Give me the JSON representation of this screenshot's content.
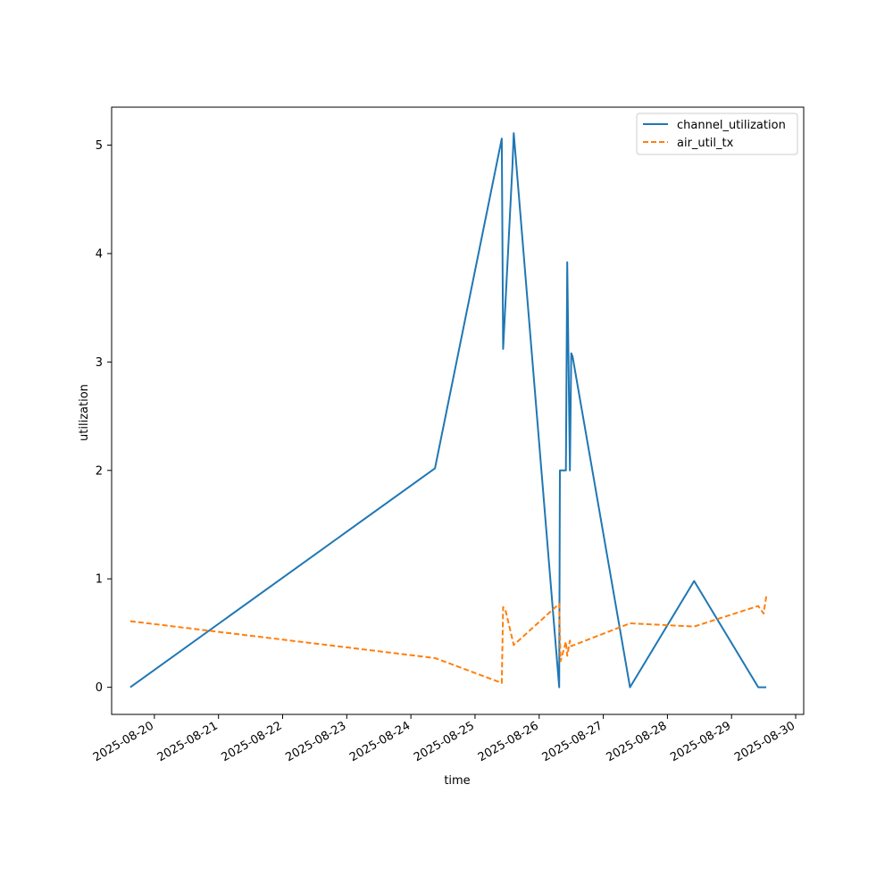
{
  "chart_data": {
    "type": "line",
    "title": "",
    "xlabel": "time",
    "ylabel": "utilization",
    "x_ticks": [
      "2025-08-20",
      "2025-08-21",
      "2025-08-22",
      "2025-08-23",
      "2025-08-24",
      "2025-08-25",
      "2025-08-26",
      "2025-08-27",
      "2025-08-28",
      "2025-08-29",
      "2025-08-30"
    ],
    "y_ticks": [
      "0",
      "1",
      "2",
      "3",
      "4",
      "5"
    ],
    "xlim": [
      "2025-08-19T08:00",
      "2025-08-30T03:00"
    ],
    "ylim": [
      -0.25,
      5.35
    ],
    "grid": false,
    "legend_position": "top-right",
    "series": [
      {
        "name": "channel_utilization",
        "color": "#1f77b4",
        "style": "solid",
        "points": [
          [
            "2025-08-19T15:00",
            0.0
          ],
          [
            "2025-08-24T09:00",
            2.02
          ],
          [
            "2025-08-25T10:00",
            5.06
          ],
          [
            "2025-08-25T10:30",
            3.12
          ],
          [
            "2025-08-25T14:00",
            4.8
          ],
          [
            "2025-08-25T14:30",
            5.11
          ],
          [
            "2025-08-26T07:30",
            0.0
          ],
          [
            "2025-08-26T07:45",
            2.0
          ],
          [
            "2025-08-26T10:00",
            2.0
          ],
          [
            "2025-08-26T10:30",
            3.92
          ],
          [
            "2025-08-26T11:30",
            2.0
          ],
          [
            "2025-08-26T12:00",
            3.08
          ],
          [
            "2025-08-26T12:30",
            3.05
          ],
          [
            "2025-08-27T10:00",
            0.0
          ],
          [
            "2025-08-28T10:00",
            0.98
          ],
          [
            "2025-08-29T10:00",
            0.0
          ],
          [
            "2025-08-29T13:00",
            0.0
          ]
        ]
      },
      {
        "name": "air_util_tx",
        "color": "#ff7f0e",
        "style": "dashed",
        "points": [
          [
            "2025-08-19T15:00",
            0.61
          ],
          [
            "2025-08-24T09:00",
            0.27
          ],
          [
            "2025-08-25T10:00",
            0.04
          ],
          [
            "2025-08-25T10:30",
            0.74
          ],
          [
            "2025-08-25T11:30",
            0.7
          ],
          [
            "2025-08-25T14:30",
            0.39
          ],
          [
            "2025-08-26T07:30",
            0.77
          ],
          [
            "2025-08-26T08:00",
            0.24
          ],
          [
            "2025-08-26T10:00",
            0.42
          ],
          [
            "2025-08-26T10:30",
            0.29
          ],
          [
            "2025-08-26T11:30",
            0.43
          ],
          [
            "2025-08-26T12:00",
            0.38
          ],
          [
            "2025-08-27T10:00",
            0.59
          ],
          [
            "2025-08-28T10:00",
            0.56
          ],
          [
            "2025-08-29T10:00",
            0.75
          ],
          [
            "2025-08-29T12:00",
            0.68
          ],
          [
            "2025-08-29T13:00",
            0.84
          ]
        ]
      }
    ]
  }
}
